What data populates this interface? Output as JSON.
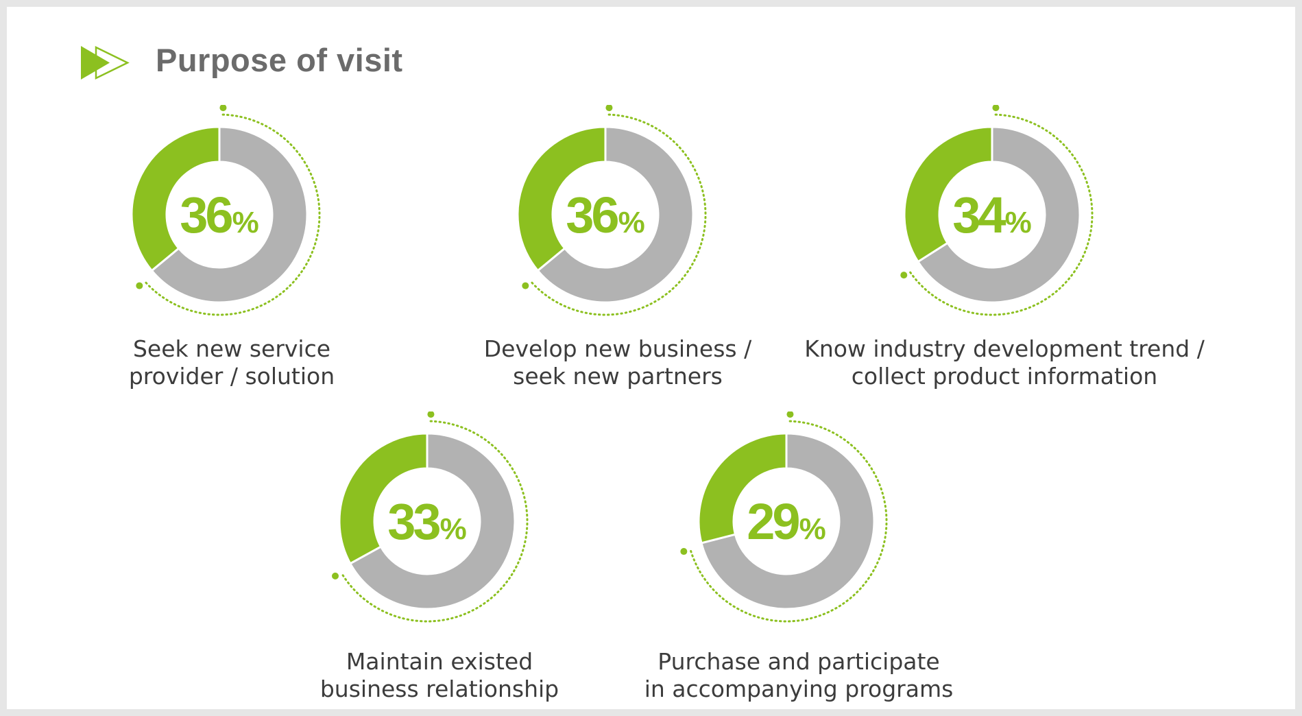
{
  "header": {
    "title": "Purpose of visit",
    "logo_icon": "double-play-arrow-icon"
  },
  "colors": {
    "accent": "#8cc020",
    "remainder": "#b2b2b2",
    "title": "#6b6b6b",
    "caption": "#3c3c3c"
  },
  "chart_data": {
    "type": "pie",
    "subtype": "donut",
    "title": "Purpose of visit",
    "unit": "%",
    "items": [
      {
        "value": 36,
        "value_label": "36",
        "unit_label": "%",
        "caption": [
          "Seek new service",
          "provider / solution"
        ]
      },
      {
        "value": 36,
        "value_label": "36",
        "unit_label": "%",
        "caption": [
          "Develop new business /",
          "seek new partners"
        ]
      },
      {
        "value": 34,
        "value_label": "34",
        "unit_label": "%",
        "caption": [
          "Know industry development trend /",
          "collect product information"
        ]
      },
      {
        "value": 33,
        "value_label": "33",
        "unit_label": "%",
        "caption": [
          "Maintain existed",
          "business relationship"
        ]
      },
      {
        "value": 29,
        "value_label": "29",
        "unit_label": "%",
        "caption": [
          "Purchase and participate",
          "in accompanying programs"
        ]
      }
    ]
  }
}
